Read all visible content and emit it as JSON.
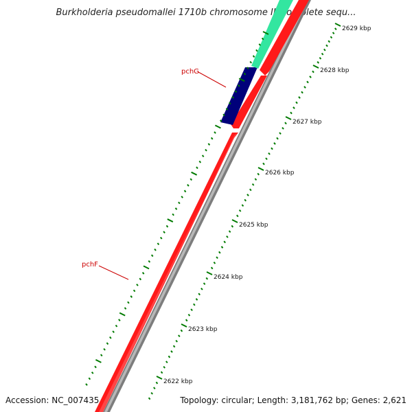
{
  "title": "Burkholderia pseudomallei 1710b chromosome II, complete sequ...",
  "footer": {
    "accession": "Accession: NC_007435",
    "summary": "Topology: circular; Length: 3,181,762 bp; Genes: 2,621"
  },
  "ticks": [
    {
      "label": "2622 kbp"
    },
    {
      "label": "2623 kbp"
    },
    {
      "label": "2624 kbp"
    },
    {
      "label": "2625 kbp"
    },
    {
      "label": "2626 kbp"
    },
    {
      "label": "2627 kbp"
    },
    {
      "label": "2628 kbp"
    },
    {
      "label": "2629 kbp"
    }
  ],
  "genes": [
    {
      "label": "pchF",
      "color": "#ff1a1a"
    },
    {
      "label": "pchG",
      "color": "#00007a"
    },
    {
      "label": "",
      "color": "#33e6a0"
    }
  ],
  "colors": {
    "cds_forward": "#ff1a1a",
    "backbone": "#8a8a8a",
    "ticks": "#007a00",
    "label": "#cc0000"
  }
}
